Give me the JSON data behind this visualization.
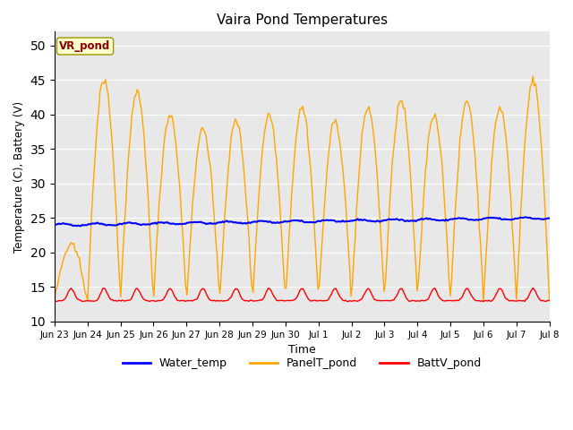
{
  "title": "Vaira Pond Temperatures",
  "xlabel": "Time",
  "ylabel": "Temperature (C), Battery (V)",
  "ylim": [
    10,
    52
  ],
  "yticks": [
    10,
    15,
    20,
    25,
    30,
    35,
    40,
    45,
    50
  ],
  "annotation_text": "VR_pond",
  "annotation_color": "#8B0000",
  "annotation_bg": "#FFFFCC",
  "bg_color": "#E8E8E8",
  "water_color": "#0000FF",
  "panel_color": "#FFA500",
  "batt_color": "#FF0000",
  "legend_labels": [
    "Water_temp",
    "PanelT_pond",
    "BattV_pond"
  ],
  "tick_labels": [
    "Jun 23",
    "Jun 24",
    "Jun 25",
    "Jun 26",
    "Jun 27",
    "Jun 28",
    "Jun 29",
    "Jun 30",
    "Jul 1",
    "Jul 2",
    "Jul 3",
    "Jul 4",
    "Jul 5",
    "Jul 6",
    "Jul 7",
    "Jul 8"
  ]
}
